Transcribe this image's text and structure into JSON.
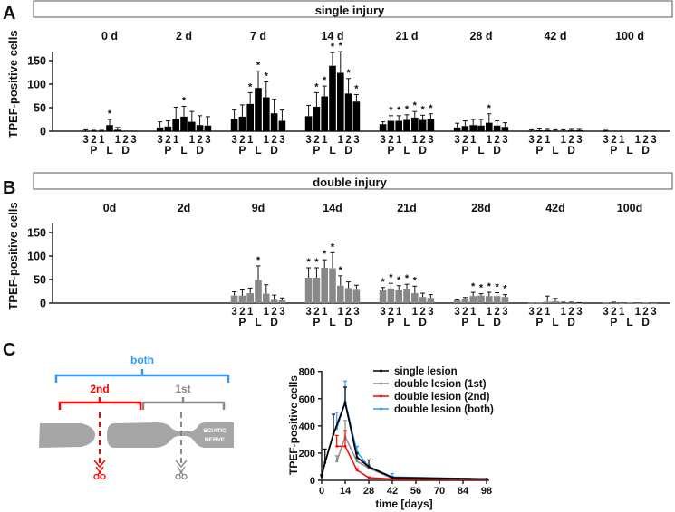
{
  "panel_labels": {
    "a": "A",
    "b": "B",
    "c": "C"
  },
  "colors": {
    "single": "#000000",
    "double": "#888888",
    "first": "#8c8c8c",
    "second": "#ff0000",
    "both": "#3399ff",
    "nerve": "#a6a6a6"
  },
  "chart_data": [
    {
      "type": "bar",
      "title": "single injury",
      "ylabel": "TPEF-positive cells",
      "ylim": [
        0,
        170
      ],
      "yticks": [
        "0",
        "50",
        "100",
        "150"
      ],
      "position_labels": [
        "3",
        "2",
        "1",
        "",
        "1",
        "2",
        "3"
      ],
      "region_labels": [
        "P",
        "L",
        "D"
      ],
      "categories": [
        "P3",
        "P2",
        "P1",
        "L",
        "D1",
        "D2",
        "D3"
      ],
      "significance_marker": "*",
      "groups": [
        {
          "label": "0 d",
          "values": [
            1,
            1,
            1,
            13,
            3,
            1,
            1
          ],
          "error_top": [
            3,
            2,
            2,
            25,
            8,
            1,
            1
          ],
          "significant": [
            0,
            0,
            0,
            1,
            0,
            0,
            0
          ]
        },
        {
          "label": "2 d",
          "values": [
            8,
            10,
            26,
            31,
            20,
            13,
            12
          ],
          "error_top": [
            20,
            22,
            51,
            53,
            42,
            33,
            31
          ],
          "significant": [
            0,
            0,
            0,
            1,
            0,
            0,
            0
          ]
        },
        {
          "label": "7 d",
          "values": [
            26,
            31,
            58,
            92,
            72,
            38,
            22
          ],
          "error_top": [
            45,
            56,
            82,
            128,
            105,
            68,
            45
          ],
          "significant": [
            0,
            0,
            1,
            1,
            1,
            0,
            0
          ]
        },
        {
          "label": "14 d",
          "values": [
            32,
            52,
            74,
            139,
            124,
            80,
            63
          ],
          "error_top": [
            55,
            82,
            96,
            167,
            169,
            112,
            78
          ],
          "significant": [
            0,
            1,
            1,
            1,
            1,
            1,
            1
          ]
        },
        {
          "label": "21 d",
          "values": [
            15,
            22,
            22,
            24,
            29,
            24,
            26
          ],
          "error_top": [
            20,
            33,
            33,
            35,
            42,
            34,
            37
          ],
          "significant": [
            0,
            1,
            1,
            1,
            1,
            1,
            1
          ]
        },
        {
          "label": "28 d",
          "values": [
            8,
            11,
            13,
            12,
            18,
            12,
            9
          ],
          "error_top": [
            17,
            22,
            25,
            25,
            37,
            22,
            18
          ],
          "significant": [
            0,
            0,
            0,
            0,
            1,
            0,
            0
          ]
        },
        {
          "label": "42 d",
          "values": [
            1,
            2,
            2,
            1,
            1,
            2,
            2
          ],
          "error_top": [
            3,
            5,
            4,
            3,
            3,
            4,
            4
          ],
          "significant": [
            0,
            0,
            0,
            0,
            0,
            0,
            0
          ]
        },
        {
          "label": "100 d",
          "values": [
            1,
            1,
            1,
            1,
            1,
            1,
            1
          ],
          "error_top": [
            2,
            1,
            1,
            1,
            1,
            1,
            1
          ],
          "significant": [
            0,
            0,
            0,
            0,
            0,
            0,
            0
          ]
        }
      ]
    },
    {
      "type": "bar",
      "title": "double injury",
      "ylabel": "TPEF-positive cells",
      "ylim": [
        0,
        170
      ],
      "yticks": [
        "0",
        "50",
        "100",
        "150"
      ],
      "position_labels": [
        "3",
        "2",
        "1",
        "",
        "1",
        "2",
        "3"
      ],
      "region_labels": [
        "P",
        "L",
        "D"
      ],
      "categories": [
        "P3",
        "P2",
        "P1",
        "L",
        "D1",
        "D2",
        "D3"
      ],
      "significance_marker": "*",
      "groups": [
        {
          "label": "0d",
          "values": null
        },
        {
          "label": "2d",
          "values": null
        },
        {
          "label": "9d",
          "values": [
            16,
            16,
            21,
            49,
            20,
            7,
            6
          ],
          "error_top": [
            24,
            28,
            32,
            79,
            39,
            17,
            11
          ],
          "significant": [
            0,
            0,
            0,
            1,
            0,
            0,
            0
          ]
        },
        {
          "label": "14d",
          "values": [
            54,
            54,
            75,
            74,
            37,
            32,
            28
          ],
          "error_top": [
            75,
            75,
            92,
            107,
            58,
            45,
            38
          ],
          "significant": [
            1,
            1,
            1,
            1,
            1,
            0,
            0
          ]
        },
        {
          "label": "21d",
          "values": [
            27,
            31,
            27,
            30,
            21,
            13,
            11
          ],
          "error_top": [
            33,
            42,
            37,
            40,
            36,
            21,
            18
          ],
          "significant": [
            1,
            1,
            1,
            1,
            1,
            0,
            0
          ]
        },
        {
          "label": "28d",
          "values": [
            6,
            9,
            15,
            16,
            15,
            15,
            13
          ],
          "error_top": [
            7,
            12,
            23,
            20,
            23,
            22,
            18
          ],
          "significant": [
            0,
            0,
            1,
            1,
            1,
            1,
            1
          ]
        },
        {
          "label": "42d",
          "values": [
            1,
            1,
            3,
            4,
            1,
            1,
            0
          ],
          "error_top": [
            1,
            1,
            15,
            10,
            2,
            2,
            1
          ],
          "significant": [
            0,
            0,
            0,
            0,
            0,
            0,
            0
          ]
        },
        {
          "label": "100d",
          "values": [
            1,
            1,
            0,
            1,
            0,
            1,
            0
          ],
          "error_top": [
            1,
            2,
            0,
            1,
            0,
            1,
            0
          ],
          "significant": [
            0,
            0,
            0,
            0,
            0,
            0,
            0
          ]
        }
      ]
    },
    {
      "type": "line",
      "xlabel": "time [days]",
      "ylabel": "TPEF-positive cells",
      "xlim": [
        0,
        100
      ],
      "ylim": [
        0,
        800
      ],
      "xticks": [
        "0",
        "14",
        "28",
        "42",
        "56",
        "70",
        "84",
        "98"
      ],
      "yticks": [
        "0",
        "200",
        "400",
        "600",
        "800"
      ],
      "legend_position": "top-right",
      "series": [
        {
          "name": "single lesion",
          "color_key": "single",
          "x": [
            0,
            2,
            7,
            14,
            21,
            28,
            42,
            100
          ],
          "y": [
            30,
            130,
            340,
            570,
            170,
            100,
            20,
            10
          ],
          "error_top": [
            40,
            230,
            485,
            685,
            200,
            150,
            25,
            12
          ]
        },
        {
          "name": "double lesion (1st)",
          "color_key": "first",
          "x": [
            9,
            14,
            21,
            28,
            42,
            100
          ],
          "y": [
            140,
            320,
            140,
            90,
            15,
            10
          ],
          "error_top": [
            180,
            440,
            160,
            100,
            18,
            12
          ]
        },
        {
          "name": "double lesion (2nd)",
          "color_key": "second",
          "x": [
            9,
            14,
            21,
            28,
            42,
            100
          ],
          "y": [
            250,
            250,
            75,
            20,
            10,
            5
          ],
          "error_top": [
            330,
            365,
            85,
            25,
            12,
            6
          ]
        },
        {
          "name": "double lesion (both)",
          "color_key": "both",
          "x": [
            9,
            14,
            21,
            28,
            42,
            100
          ],
          "y": [
            380,
            580,
            210,
            100,
            25,
            10
          ],
          "error_top": [
            500,
            730,
            250,
            110,
            50,
            12
          ]
        }
      ]
    }
  ],
  "diagram": {
    "both_label": "both",
    "second_label": "2nd",
    "first_label": "1st",
    "nerve_label_line1": "SCIATIC",
    "nerve_label_line2": "NERVE"
  }
}
